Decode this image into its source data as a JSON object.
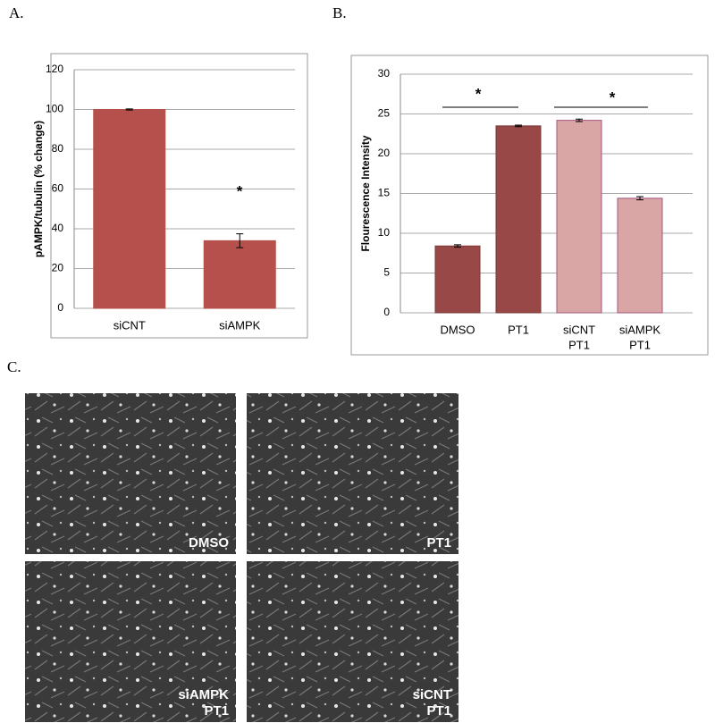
{
  "panel_labels": [
    "A.",
    "B.",
    "C."
  ],
  "chart_data": [
    {
      "type": "bar",
      "ylabel": "pAMPK/tubulin (% change)",
      "categories": [
        [
          "siCNT"
        ],
        [
          "siAMPK"
        ]
      ],
      "values": [
        100,
        34
      ],
      "errors": [
        0.3,
        3.5
      ],
      "colors": [
        "#b5504c",
        "#b5504c"
      ],
      "edge_colors": [
        "#b5504c",
        "#b5504c"
      ],
      "ylim": [
        0,
        120
      ],
      "yticks": [
        0,
        20,
        40,
        60,
        80,
        100,
        120
      ],
      "grid": true,
      "annotations": [
        "*"
      ]
    },
    {
      "type": "bar",
      "ylabel": "Flourescence Intensity",
      "categories": [
        [
          "DMSO"
        ],
        [
          "PT1"
        ],
        [
          "siCNT",
          "PT1"
        ],
        [
          "siAMPK",
          "PT1"
        ]
      ],
      "values": [
        8.4,
        23.5,
        24.2,
        14.4
      ],
      "errors": [
        0.15,
        0.1,
        0.15,
        0.2
      ],
      "colors": [
        "#984846",
        "#984846",
        "#d9a5a5",
        "#d9a5a5"
      ],
      "edge_colors": [
        "#7a3a38",
        "#7a3a38",
        "#a5557e",
        "#a5557e"
      ],
      "ylim": [
        0,
        30
      ],
      "yticks": [
        0,
        5,
        10,
        15,
        20,
        25,
        30
      ],
      "grid": true,
      "annotations": [
        "*",
        "*"
      ]
    }
  ],
  "images": [
    {
      "label": [
        "DMSO"
      ]
    },
    {
      "label": [
        "PT1"
      ]
    },
    {
      "label": [
        "siAMPK",
        "PT1"
      ]
    },
    {
      "label": [
        "siCNT",
        "PT1"
      ]
    }
  ]
}
